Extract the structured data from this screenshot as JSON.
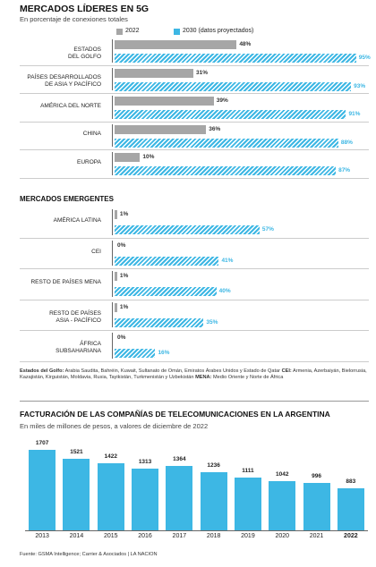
{
  "chart_data": [
    {
      "type": "bar",
      "orientation": "horizontal",
      "title": "MERCADOS LÍDERES EN 5G",
      "subtitle": "En porcentaje de conexiones totales",
      "categories": [
        "ESTADOS\nDEL GOLFO",
        "PAÍSES DESARROLLADOS\nDE ASIA Y PACÍFICO",
        "AMÉRICA DEL NORTE",
        "CHINA",
        "EUROPA"
      ],
      "series": [
        {
          "name": "2022",
          "color": "#a6a6a6",
          "values": [
            48,
            31,
            39,
            36,
            10
          ],
          "value_labels": [
            "48%",
            "31%",
            "39%",
            "36%",
            "10%"
          ]
        },
        {
          "name": "2030 (datos proyectados)",
          "color": "#3db7e4",
          "hatch": true,
          "values": [
            95,
            93,
            91,
            88,
            87
          ],
          "value_labels": [
            "95%",
            "93%",
            "91%",
            "88%",
            "87%"
          ]
        }
      ],
      "xlim": [
        0,
        100
      ]
    },
    {
      "type": "bar",
      "orientation": "horizontal",
      "title": "MERCADOS EMERGENTES",
      "categories": [
        "AMÉRICA LATINA",
        "CEI",
        "RESTO DE PAÍSES MENA",
        "RESTO DE PAÍSES\nASIA - PACÍFICO",
        "ÁFRICA\nSUBSAHARIANA"
      ],
      "series": [
        {
          "color": "#a6a6a6",
          "values": [
            1,
            0,
            1,
            1,
            0
          ],
          "value_labels": [
            "1%",
            "0%",
            "1%",
            "1%",
            "0%"
          ]
        },
        {
          "color": "#3db7e4",
          "hatch": true,
          "values": [
            57,
            41,
            40,
            35,
            16
          ],
          "value_labels": [
            "57%",
            "41%",
            "40%",
            "35%",
            "16%"
          ]
        }
      ],
      "xlim": [
        0,
        100
      ]
    },
    {
      "type": "bar",
      "orientation": "vertical",
      "title": "FACTURACIÓN DE LAS COMPAÑÍAS DE TELECOMUNICACIONES EN LA ARGENTINA",
      "subtitle": "En miles de millones de pesos, a valores de diciembre de 2022",
      "categories": [
        "2013",
        "2014",
        "2015",
        "2016",
        "2017",
        "2018",
        "2019",
        "2020",
        "2021",
        "2022"
      ],
      "values": [
        1707,
        1521,
        1422,
        1313,
        1364,
        1236,
        1111,
        1042,
        996,
        883
      ],
      "color": "#3db7e4",
      "ylim": [
        0,
        1800
      ]
    }
  ],
  "footnotes": [
    {
      "label": "Estados del Golfo:",
      "text": "Arabia Saudita, Bahréin, Kuwait, Sultanato de Omán, Emiratos Árabes Unidos y Estado de Qatar"
    },
    {
      "label": "CEI:",
      "text": "Armenia, Azerbaiyán, Bielorrusia, Kazajistán, Kirguistán, Moldavia, Rusia, Tayikistán, Turkmenistán y Uzbekistán"
    },
    {
      "label": "MENA:",
      "text": "Medio Oriente y Norte de África"
    }
  ],
  "source": "Fuente: GSMA Intelligence; Carrier & Asociados | LA NACION"
}
